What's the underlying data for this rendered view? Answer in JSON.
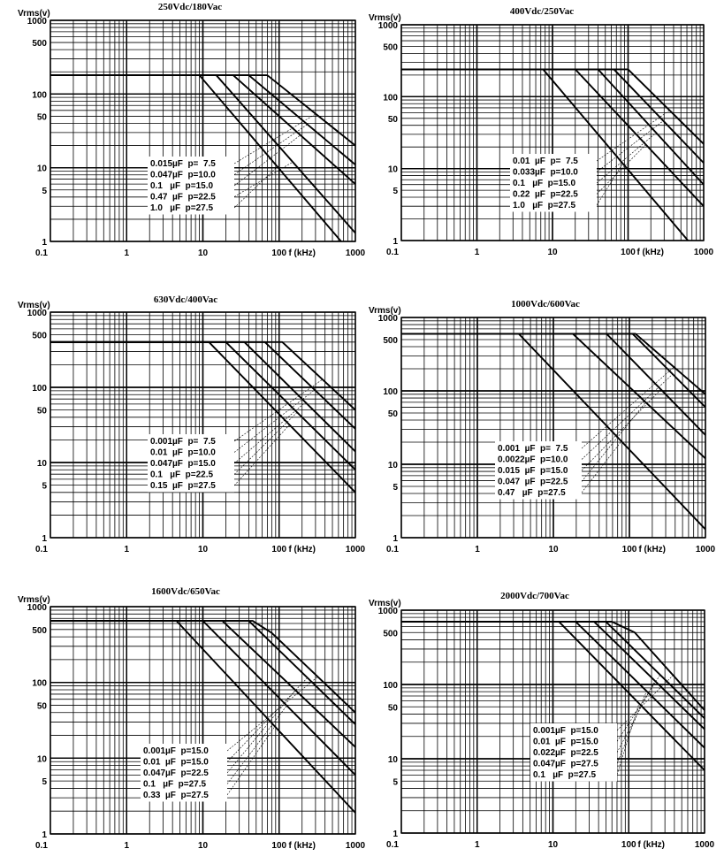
{
  "chart_data": [
    {
      "type": "line",
      "title": "250Vdc/180Vac",
      "ylabel": "Vrms(v)",
      "xlabel": "f (kHz)",
      "xscale": "log",
      "yscale": "log",
      "xlim": [
        0.1,
        1000
      ],
      "ylim": [
        1,
        1000
      ],
      "xticks": [
        "0.1",
        "1",
        "10",
        "100",
        "1000"
      ],
      "yticks": [
        "1",
        "5",
        "10",
        "50",
        "100",
        "500",
        "1000"
      ],
      "grid": true,
      "series": [
        {
          "name": "0.015µF  p=  7.5",
          "points": [
            [
              0.1,
              180
            ],
            [
              70,
              180
            ],
            [
              1000,
              20
            ]
          ]
        },
        {
          "name": "0.047µF  p=10.0",
          "points": [
            [
              0.1,
              180
            ],
            [
              40,
              180
            ],
            [
              1000,
              11
            ]
          ]
        },
        {
          "name": "0.1   µF  p=15.0",
          "points": [
            [
              0.1,
              180
            ],
            [
              25,
              180
            ],
            [
              1000,
              6
            ]
          ]
        },
        {
          "name": "0.47  µF  p=22.5",
          "points": [
            [
              0.1,
              180
            ],
            [
              15,
              180
            ],
            [
              1000,
              1.3
            ]
          ]
        },
        {
          "name": "1.0   µF  p=27.5",
          "points": [
            [
              0.1,
              180
            ],
            [
              9,
              180
            ],
            [
              650,
              1
            ]
          ]
        }
      ]
    },
    {
      "type": "line",
      "title": "400Vdc/250Vac",
      "ylabel": "Vrms(v)",
      "xlabel": "f (kHz)",
      "xscale": "log",
      "yscale": "log",
      "xlim": [
        0.1,
        1000
      ],
      "ylim": [
        1,
        1000
      ],
      "xticks": [
        "0.1",
        "1",
        "10",
        "100",
        "1000"
      ],
      "yticks": [
        "1",
        "5",
        "10",
        "50",
        "100",
        "500",
        "1000"
      ],
      "grid": true,
      "series": [
        {
          "name": "0.01  µF  p=  7.5",
          "points": [
            [
              0.1,
              240
            ],
            [
              100,
              240
            ],
            [
              1000,
              22
            ]
          ]
        },
        {
          "name": "0.033µF  p=10.0",
          "points": [
            [
              0.1,
              240
            ],
            [
              65,
              240
            ],
            [
              1000,
              12
            ]
          ]
        },
        {
          "name": "0.1   µF  p=15.0",
          "points": [
            [
              0.1,
              240
            ],
            [
              40,
              240
            ],
            [
              1000,
              6
            ]
          ]
        },
        {
          "name": "0.22  µF  p=22.5",
          "points": [
            [
              0.1,
              240
            ],
            [
              20,
              240
            ],
            [
              1000,
              3
            ]
          ]
        },
        {
          "name": "1.0   µF  p=27.5",
          "points": [
            [
              0.1,
              240
            ],
            [
              7.5,
              240
            ],
            [
              620,
              1
            ]
          ]
        }
      ]
    },
    {
      "type": "line",
      "title": "630Vdc/400Vac",
      "ylabel": "Vrms(v)",
      "xlabel": "f (kHz)",
      "xscale": "log",
      "yscale": "log",
      "xlim": [
        0.1,
        1000
      ],
      "ylim": [
        1,
        1000
      ],
      "xticks": [
        "0.1",
        "1",
        "10",
        "100",
        "1000"
      ],
      "yticks": [
        "1",
        "5",
        "10",
        "50",
        "100",
        "500",
        "1000"
      ],
      "grid": true,
      "series": [
        {
          "name": "0.001µF  p=  7.5",
          "points": [
            [
              0.1,
              400
            ],
            [
              110,
              400
            ],
            [
              1000,
              50
            ]
          ]
        },
        {
          "name": "0.01  µF  p=10.0",
          "points": [
            [
              0.1,
              400
            ],
            [
              65,
              400
            ],
            [
              1000,
              28
            ]
          ]
        },
        {
          "name": "0.047µF  p=15.0",
          "points": [
            [
              0.1,
              400
            ],
            [
              35,
              400
            ],
            [
              1000,
              14
            ]
          ]
        },
        {
          "name": "0.1   µF  p=22.5",
          "points": [
            [
              0.1,
              400
            ],
            [
              20,
              400
            ],
            [
              1000,
              8
            ]
          ]
        },
        {
          "name": "0.15  µF  p=27.5",
          "points": [
            [
              0.1,
              400
            ],
            [
              12,
              400
            ],
            [
              1000,
              4
            ]
          ]
        }
      ]
    },
    {
      "type": "line",
      "title": "1000Vdc/600Vac",
      "ylabel": "Vrms(v)",
      "xlabel": "f (kHz)",
      "xscale": "log",
      "yscale": "log",
      "xlim": [
        0.1,
        1000
      ],
      "ylim": [
        1,
        1000
      ],
      "xticks": [
        "0.1",
        "1",
        "10",
        "100",
        "1000"
      ],
      "yticks": [
        "1",
        "5",
        "10",
        "50",
        "100",
        "500",
        "1000"
      ],
      "grid": true,
      "series": [
        {
          "name": "0.001  µF  p=  7.5",
          "points": [
            [
              0.1,
              600
            ],
            [
              120,
              600
            ],
            [
              1000,
              90
            ]
          ]
        },
        {
          "name": "0.0022µF  p=10.0",
          "points": [
            [
              0.1,
              600
            ],
            [
              110,
              600
            ],
            [
              1000,
              60
            ]
          ]
        },
        {
          "name": "0.015  µF  p=15.0",
          "points": [
            [
              0.1,
              600
            ],
            [
              50,
              600
            ],
            [
              1000,
              25
            ]
          ]
        },
        {
          "name": "0.047  µF  p=22.5",
          "points": [
            [
              0.1,
              600
            ],
            [
              18,
              600
            ],
            [
              1000,
              12
            ]
          ]
        },
        {
          "name": "0.47   µF  p=27.5",
          "points": [
            [
              0.1,
              600
            ],
            [
              3.5,
              600
            ],
            [
              1000,
              1.3
            ]
          ]
        }
      ]
    },
    {
      "type": "line",
      "title": "1600Vdc/650Vac",
      "ylabel": "Vrms(v)",
      "xlabel": "f (kHz)",
      "xscale": "log",
      "yscale": "log",
      "xlim": [
        0.1,
        1000
      ],
      "ylim": [
        1,
        1000
      ],
      "xticks": [
        "0.1",
        "1",
        "10",
        "100",
        "1000"
      ],
      "yticks": [
        "1",
        "5",
        "10",
        "50",
        "100",
        "500",
        "1000"
      ],
      "grid": true,
      "series": [
        {
          "name": "0.001µF  p=15.0",
          "points": [
            [
              0.1,
              650
            ],
            [
              45,
              650
            ],
            [
              80,
              450
            ],
            [
              1000,
              40
            ]
          ]
        },
        {
          "name": "0.01  µF  p=15.0",
          "points": [
            [
              0.1,
              650
            ],
            [
              40,
              650
            ],
            [
              1000,
              28
            ]
          ]
        },
        {
          "name": "0.047µF  p=22.5",
          "points": [
            [
              0.1,
              650
            ],
            [
              18,
              650
            ],
            [
              1000,
              14
            ]
          ]
        },
        {
          "name": "0.1   µF  p=27.5",
          "points": [
            [
              0.1,
              650
            ],
            [
              10,
              650
            ],
            [
              1000,
              6
            ]
          ]
        },
        {
          "name": "0.33  µF  p=27.5",
          "points": [
            [
              0.1,
              650
            ],
            [
              4.5,
              650
            ],
            [
              1000,
              1.9
            ]
          ]
        }
      ]
    },
    {
      "type": "line",
      "title": "2000Vdc/700Vac",
      "ylabel": "Vrms(v)",
      "xlabel": "f (kHz)",
      "xscale": "log",
      "yscale": "log",
      "xlim": [
        0.1,
        1000
      ],
      "ylim": [
        1,
        1000
      ],
      "xticks": [
        "0.1",
        "1",
        "10",
        "100",
        "1000"
      ],
      "yticks": [
        "1",
        "5",
        "10",
        "50",
        "100",
        "500",
        "1000"
      ],
      "grid": true,
      "series": [
        {
          "name": "0.001µF  p=15.0",
          "points": [
            [
              0.1,
              700
            ],
            [
              60,
              700
            ],
            [
              120,
              500
            ],
            [
              1000,
              45
            ]
          ]
        },
        {
          "name": "0.01  µF  p=15.0",
          "points": [
            [
              0.1,
              700
            ],
            [
              50,
              700
            ],
            [
              1000,
              35
            ]
          ]
        },
        {
          "name": "0.022µF  p=22.5",
          "points": [
            [
              0.1,
              700
            ],
            [
              35,
              700
            ],
            [
              1000,
              25
            ]
          ]
        },
        {
          "name": "0.047µF  p=27.5",
          "points": [
            [
              0.1,
              700
            ],
            [
              20,
              700
            ],
            [
              1000,
              14
            ]
          ]
        },
        {
          "name": "0.1   µF  p=27.5",
          "points": [
            [
              0.1,
              700
            ],
            [
              12,
              700
            ],
            [
              1000,
              7
            ]
          ]
        }
      ]
    }
  ]
}
